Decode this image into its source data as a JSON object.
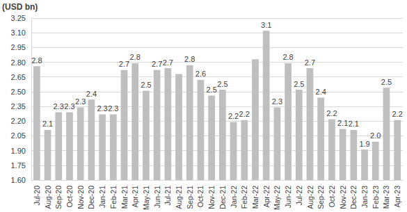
{
  "chart_data": {
    "type": "bar",
    "ylabel": "(USD bn)",
    "categories": [
      "Jul-20",
      "Aug-20",
      "Sep-20",
      "Oct-20",
      "Nov-20",
      "Dec-20",
      "Jan-21",
      "Feb-21",
      "Mar-21",
      "Apr-21",
      "May-21",
      "Jun-21",
      "Jul-21",
      "Aug-21",
      "Sep-21",
      "Oct-21",
      "Nov-21",
      "Dec-21",
      "Jan-22",
      "Feb-22",
      "Mar-22",
      "Apr-22",
      "May-22",
      "Jun-22",
      "Jul-22",
      "Aug-22",
      "Sep-22",
      "Oct-22",
      "Nov-22",
      "Dec-22",
      "Jan-23",
      "Feb-23",
      "Mar-23",
      "Apr-23"
    ],
    "values": [
      2.76,
      2.11,
      2.29,
      2.29,
      2.34,
      2.42,
      2.27,
      2.27,
      2.72,
      2.79,
      2.51,
      2.72,
      2.74,
      2.68,
      2.77,
      2.62,
      2.46,
      2.52,
      2.19,
      2.21,
      2.83,
      3.12,
      2.34,
      2.79,
      2.52,
      2.74,
      2.44,
      2.22,
      2.12,
      2.11,
      1.91,
      1.99,
      2.54,
      2.21
    ],
    "value_labels": [
      "2.8",
      "2.1",
      "2.3",
      "2.3",
      "2.3",
      "2.4",
      "2.3",
      "2.3",
      "2.7",
      "2.8",
      "2.5",
      "2.7",
      "2.7",
      null,
      "2.8",
      "2.6",
      "2.5",
      "2.5",
      "2.2",
      "2.2",
      null,
      "3.1",
      "2.3",
      "2.8",
      "2.5",
      "2.7",
      "2.4",
      "2.2",
      "2.1",
      "2.1",
      "1.9",
      "2.0",
      "2.5",
      "2.2"
    ],
    "data_labels": true,
    "color": "#bfbfbf",
    "ylim": [
      1.6,
      3.25
    ],
    "yticks": [
      {
        "value": 1.6,
        "label": "1.60"
      },
      1.75,
      {
        "value": 1.9,
        "label": "1.90"
      },
      2.05,
      {
        "value": 2.2,
        "label": "2.20"
      },
      2.35,
      {
        "value": 2.5,
        "label": "2.50"
      },
      2.65,
      {
        "value": 2.8,
        "label": "2.80"
      },
      2.95,
      {
        "value": 3.1,
        "label": "3.10"
      },
      3.25
    ],
    "grid": true
  }
}
